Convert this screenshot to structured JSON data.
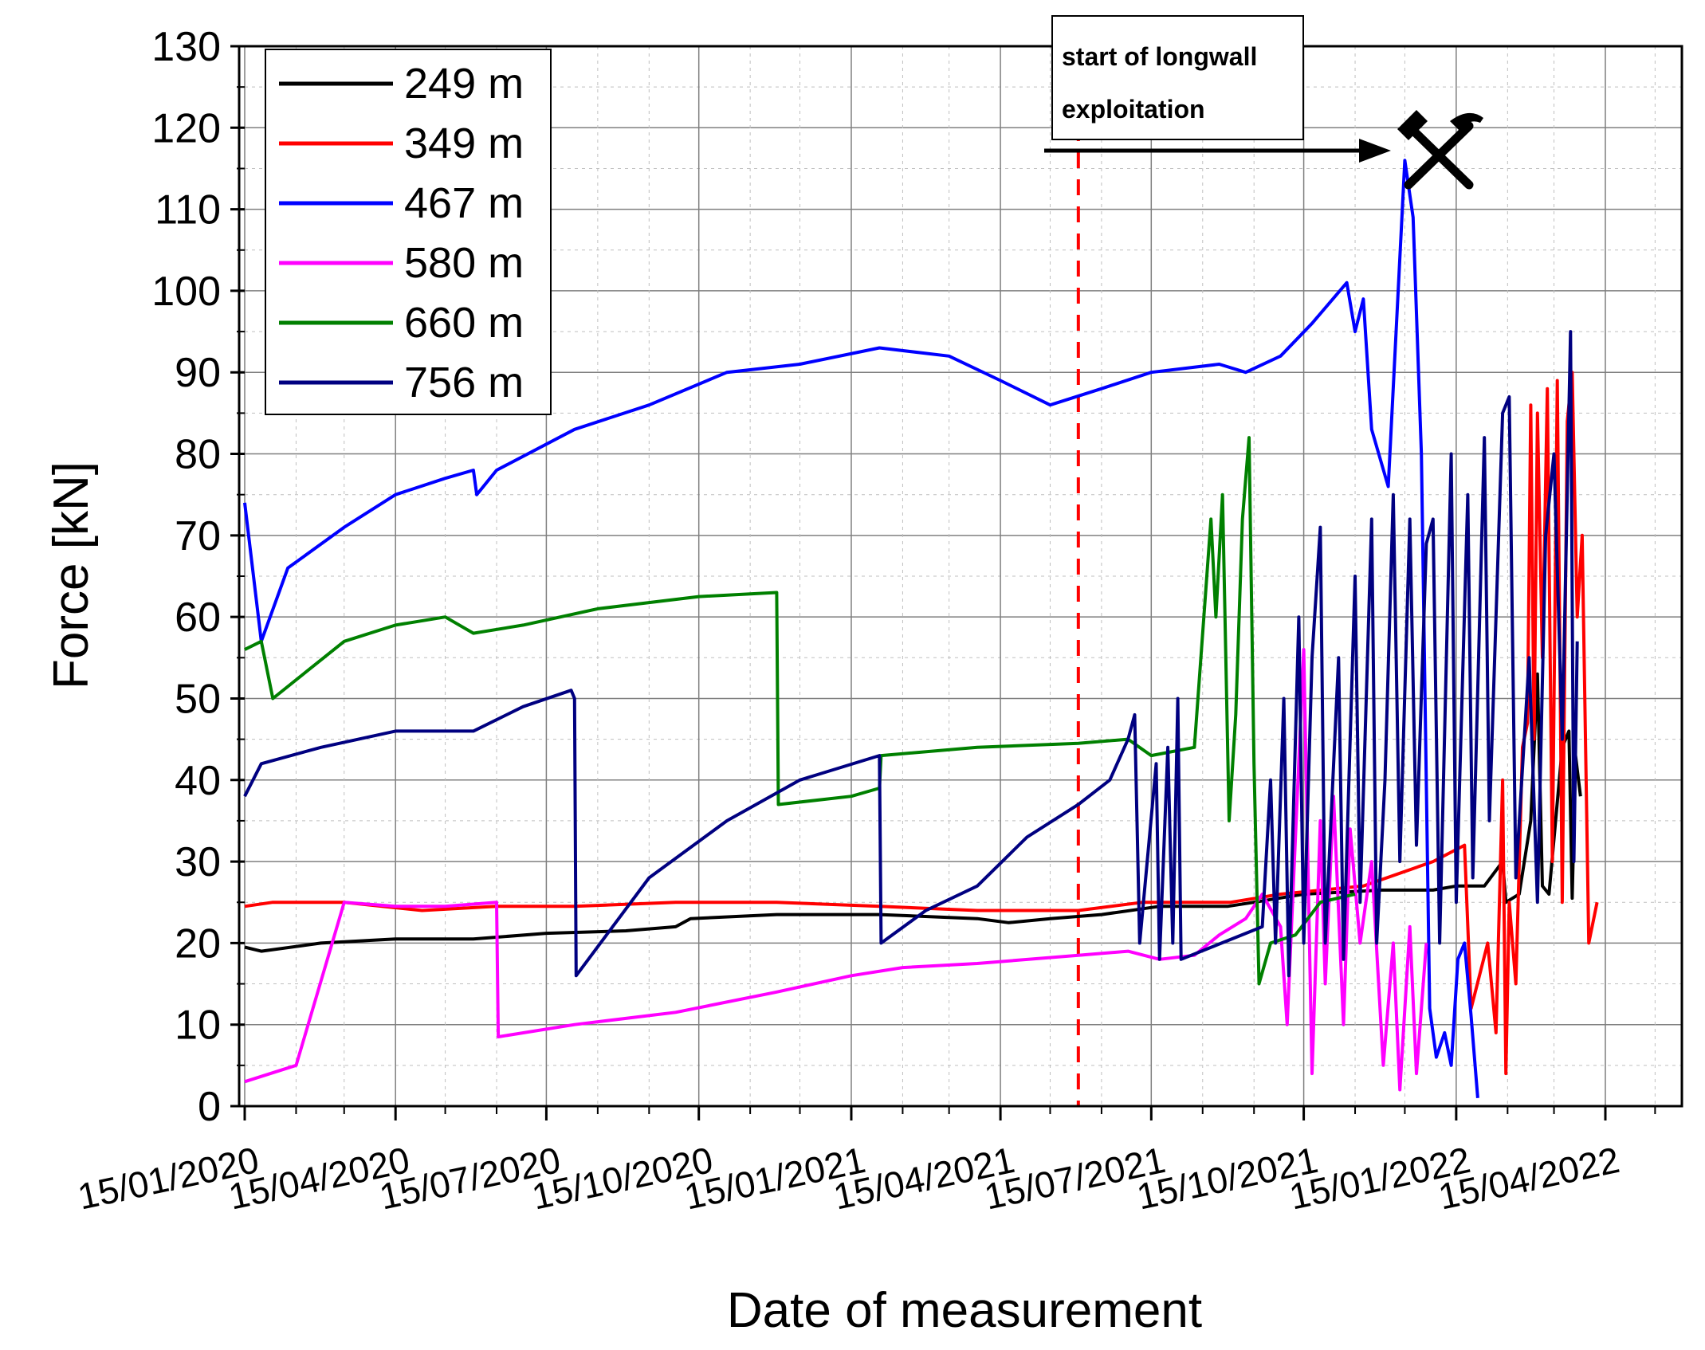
{
  "chart_data": {
    "type": "line",
    "title": "",
    "xlabel": "Date of measurement",
    "ylabel": "Force [kN]",
    "x_type": "date",
    "x_ticks": [
      "15/01/2020",
      "15/04/2020",
      "15/07/2020",
      "15/10/2020",
      "15/01/2021",
      "15/04/2021",
      "15/07/2021",
      "15/10/2021",
      "15/01/2022",
      "15/04/2022"
    ],
    "ylim": [
      0,
      130
    ],
    "y_ticks": [
      0,
      10,
      20,
      30,
      40,
      50,
      60,
      70,
      80,
      90,
      100,
      110,
      120,
      130
    ],
    "grid": true,
    "legend_position": "top-left",
    "annotation": {
      "text_line1": "start of longwall",
      "text_line2": "exploitation",
      "date": "2021-06-01",
      "line_color": "#ff0000",
      "icon": "hammer-and-pick-icon"
    },
    "series": [
      {
        "name": "249 m",
        "color": "#000000",
        "points": [
          [
            "2020-01-15",
            19.5
          ],
          [
            "2020-01-25",
            19.0
          ],
          [
            "2020-03-01",
            20.0
          ],
          [
            "2020-04-15",
            20.5
          ],
          [
            "2020-06-01",
            20.5
          ],
          [
            "2020-07-15",
            21.2
          ],
          [
            "2020-09-01",
            21.5
          ],
          [
            "2020-10-01",
            22.0
          ],
          [
            "2020-10-10",
            23.0
          ],
          [
            "2020-12-01",
            23.5
          ],
          [
            "2021-02-01",
            23.5
          ],
          [
            "2021-04-01",
            23.0
          ],
          [
            "2021-04-20",
            22.5
          ],
          [
            "2021-05-15",
            23.0
          ],
          [
            "2021-06-15",
            23.5
          ],
          [
            "2021-07-20",
            24.5
          ],
          [
            "2021-08-05",
            24.5
          ],
          [
            "2021-08-30",
            24.5
          ],
          [
            "2021-09-15",
            25.0
          ],
          [
            "2021-10-15",
            26.0
          ],
          [
            "2021-12-01",
            26.5
          ],
          [
            "2022-01-01",
            26.5
          ],
          [
            "2022-01-15",
            27.0
          ],
          [
            "2022-02-01",
            27.0
          ],
          [
            "2022-02-12",
            30.0
          ],
          [
            "2022-02-14",
            25.0
          ],
          [
            "2022-02-18",
            25.5
          ],
          [
            "2022-02-22",
            26.0
          ],
          [
            "2022-03-01",
            35.0
          ],
          [
            "2022-03-05",
            53.0
          ],
          [
            "2022-03-08",
            27.0
          ],
          [
            "2022-03-12",
            26.0
          ],
          [
            "2022-03-20",
            44.0
          ],
          [
            "2022-03-24",
            46.0
          ],
          [
            "2022-03-26",
            25.5
          ],
          [
            "2022-03-28",
            43.0
          ],
          [
            "2022-03-31",
            38.0
          ]
        ]
      },
      {
        "name": "349 m",
        "color": "#ff0000",
        "points": [
          [
            "2020-01-15",
            24.5
          ],
          [
            "2020-02-01",
            25.0
          ],
          [
            "2020-03-15",
            25.0
          ],
          [
            "2020-05-01",
            24.0
          ],
          [
            "2020-06-15",
            24.5
          ],
          [
            "2020-08-01",
            24.5
          ],
          [
            "2020-10-01",
            25.0
          ],
          [
            "2020-12-01",
            25.0
          ],
          [
            "2021-02-01",
            24.5
          ],
          [
            "2021-04-01",
            24.0
          ],
          [
            "2021-06-01",
            24.0
          ],
          [
            "2021-07-10",
            25.0
          ],
          [
            "2021-08-15",
            25.0
          ],
          [
            "2021-09-01",
            25.0
          ],
          [
            "2021-10-01",
            26.0
          ],
          [
            "2021-11-20",
            27.0
          ],
          [
            "2022-01-01",
            30.0
          ],
          [
            "2022-01-20",
            32.0
          ],
          [
            "2022-01-24",
            12.0
          ],
          [
            "2022-02-03",
            20.0
          ],
          [
            "2022-02-08",
            9.0
          ],
          [
            "2022-02-12",
            40.0
          ],
          [
            "2022-02-14",
            4.0
          ],
          [
            "2022-02-16",
            25.0
          ],
          [
            "2022-02-20",
            15.0
          ],
          [
            "2022-02-24",
            44.0
          ],
          [
            "2022-02-27",
            47.0
          ],
          [
            "2022-03-01",
            86.0
          ],
          [
            "2022-03-03",
            45.0
          ],
          [
            "2022-03-05",
            85.0
          ],
          [
            "2022-03-08",
            55.0
          ],
          [
            "2022-03-11",
            88.0
          ],
          [
            "2022-03-14",
            30.0
          ],
          [
            "2022-03-17",
            89.0
          ],
          [
            "2022-03-20",
            25.0
          ],
          [
            "2022-03-23",
            84.0
          ],
          [
            "2022-03-26",
            90.0
          ],
          [
            "2022-03-29",
            60.0
          ],
          [
            "2022-04-01",
            70.0
          ],
          [
            "2022-04-05",
            20.0
          ],
          [
            "2022-04-10",
            25.0
          ]
        ]
      },
      {
        "name": "467 m",
        "color": "#0000ff",
        "points": [
          [
            "2020-01-15",
            74.0
          ],
          [
            "2020-01-25",
            57.0
          ],
          [
            "2020-02-10",
            66.0
          ],
          [
            "2020-03-15",
            71.0
          ],
          [
            "2020-04-15",
            75.0
          ],
          [
            "2020-05-15",
            77.0
          ],
          [
            "2020-06-01",
            78.0
          ],
          [
            "2020-06-03",
            75.0
          ],
          [
            "2020-06-15",
            78.0
          ],
          [
            "2020-08-01",
            83.0
          ],
          [
            "2020-09-15",
            86.0
          ],
          [
            "2020-11-01",
            90.0
          ],
          [
            "2020-12-15",
            91.0
          ],
          [
            "2021-02-01",
            93.0
          ],
          [
            "2021-03-15",
            92.0
          ],
          [
            "2021-04-15",
            89.0
          ],
          [
            "2021-05-15",
            86.0
          ],
          [
            "2021-06-15",
            88.0
          ],
          [
            "2021-07-15",
            90.0
          ],
          [
            "2021-08-25",
            91.0
          ],
          [
            "2021-09-10",
            90.0
          ],
          [
            "2021-10-01",
            92.0
          ],
          [
            "2021-10-20",
            96.0
          ],
          [
            "2021-11-10",
            101.0
          ],
          [
            "2021-11-15",
            95.0
          ],
          [
            "2021-11-20",
            99.0
          ],
          [
            "2021-11-25",
            83.0
          ],
          [
            "2021-12-05",
            76.0
          ],
          [
            "2021-12-15",
            116.0
          ],
          [
            "2021-12-20",
            109.0
          ],
          [
            "2021-12-25",
            80.0
          ],
          [
            "2021-12-30",
            12.0
          ],
          [
            "2022-01-03",
            6.0
          ],
          [
            "2022-01-08",
            9.0
          ],
          [
            "2022-01-12",
            5.0
          ],
          [
            "2022-01-16",
            18.0
          ],
          [
            "2022-01-20",
            20.0
          ],
          [
            "2022-01-24",
            11.0
          ],
          [
            "2022-01-28",
            1.0
          ]
        ]
      },
      {
        "name": "580 m",
        "color": "#ff00ff",
        "points": [
          [
            "2020-01-15",
            3.0
          ],
          [
            "2020-02-15",
            5.0
          ],
          [
            "2020-03-15",
            25.0
          ],
          [
            "2020-04-15",
            24.5
          ],
          [
            "2020-05-15",
            24.5
          ],
          [
            "2020-06-15",
            25.0
          ],
          [
            "2020-06-16",
            8.5
          ],
          [
            "2020-08-01",
            10.0
          ],
          [
            "2020-10-01",
            11.5
          ],
          [
            "2020-12-01",
            14.0
          ],
          [
            "2021-01-15",
            16.0
          ],
          [
            "2021-02-15",
            17.0
          ],
          [
            "2021-04-01",
            17.5
          ],
          [
            "2021-06-01",
            18.5
          ],
          [
            "2021-07-01",
            19.0
          ],
          [
            "2021-07-20",
            18.0
          ],
          [
            "2021-08-10",
            18.5
          ],
          [
            "2021-08-25",
            21.0
          ],
          [
            "2021-09-10",
            23.0
          ],
          [
            "2021-09-20",
            26.0
          ],
          [
            "2021-10-01",
            22.0
          ],
          [
            "2021-10-05",
            10.0
          ],
          [
            "2021-10-10",
            33.0
          ],
          [
            "2021-10-15",
            56.0
          ],
          [
            "2021-10-20",
            4.0
          ],
          [
            "2021-10-25",
            35.0
          ],
          [
            "2021-10-28",
            15.0
          ],
          [
            "2021-11-02",
            38.0
          ],
          [
            "2021-11-08",
            10.0
          ],
          [
            "2021-11-12",
            34.0
          ],
          [
            "2021-11-18",
            20.0
          ],
          [
            "2021-11-25",
            30.0
          ],
          [
            "2021-12-02",
            5.0
          ],
          [
            "2021-12-08",
            20.0
          ],
          [
            "2021-12-12",
            2.0
          ],
          [
            "2021-12-18",
            22.0
          ],
          [
            "2021-12-22",
            4.0
          ],
          [
            "2021-12-28",
            20.0
          ]
        ]
      },
      {
        "name": "660 m",
        "color": "#008000",
        "points": [
          [
            "2020-01-15",
            56.0
          ],
          [
            "2020-01-25",
            57.0
          ],
          [
            "2020-02-01",
            50.0
          ],
          [
            "2020-03-15",
            57.0
          ],
          [
            "2020-04-15",
            59.0
          ],
          [
            "2020-05-15",
            60.0
          ],
          [
            "2020-06-01",
            58.0
          ],
          [
            "2020-07-01",
            59.0
          ],
          [
            "2020-08-15",
            61.0
          ],
          [
            "2020-10-15",
            62.5
          ],
          [
            "2020-12-01",
            63.0
          ],
          [
            "2020-12-02",
            37.0
          ],
          [
            "2021-01-15",
            38.0
          ],
          [
            "2021-02-01",
            39.0
          ],
          [
            "2021-02-02",
            43.0
          ],
          [
            "2021-04-01",
            44.0
          ],
          [
            "2021-06-01",
            44.5
          ],
          [
            "2021-07-01",
            45.0
          ],
          [
            "2021-07-15",
            43.0
          ],
          [
            "2021-08-10",
            44.0
          ],
          [
            "2021-08-20",
            72.0
          ],
          [
            "2021-08-23",
            60.0
          ],
          [
            "2021-08-27",
            75.0
          ],
          [
            "2021-08-31",
            35.0
          ],
          [
            "2021-09-04",
            48.0
          ],
          [
            "2021-09-08",
            72.0
          ],
          [
            "2021-09-12",
            82.0
          ],
          [
            "2021-09-15",
            42.0
          ],
          [
            "2021-09-18",
            15.0
          ],
          [
            "2021-09-25",
            20.0
          ],
          [
            "2021-10-10",
            21.0
          ],
          [
            "2021-10-25",
            25.0
          ],
          [
            "2021-11-15",
            26.0
          ]
        ]
      },
      {
        "name": "756 m",
        "color": "#000080",
        "points": [
          [
            "2020-01-15",
            38.0
          ],
          [
            "2020-01-25",
            42.0
          ],
          [
            "2020-03-01",
            44.0
          ],
          [
            "2020-04-15",
            46.0
          ],
          [
            "2020-06-01",
            46.0
          ],
          [
            "2020-07-01",
            49.0
          ],
          [
            "2020-07-30",
            51.0
          ],
          [
            "2020-08-01",
            50.0
          ],
          [
            "2020-08-02",
            16.0
          ],
          [
            "2020-09-15",
            28.0
          ],
          [
            "2020-11-01",
            35.0
          ],
          [
            "2020-12-15",
            40.0
          ],
          [
            "2021-02-01",
            43.0
          ],
          [
            "2021-02-02",
            20.0
          ],
          [
            "2021-03-01",
            24.0
          ],
          [
            "2021-04-01",
            27.0
          ],
          [
            "2021-05-01",
            33.0
          ],
          [
            "2021-06-01",
            37.0
          ],
          [
            "2021-06-20",
            40.0
          ],
          [
            "2021-07-01",
            45.0
          ],
          [
            "2021-07-05",
            48.0
          ],
          [
            "2021-07-08",
            20.0
          ],
          [
            "2021-07-18",
            42.0
          ],
          [
            "2021-07-20",
            18.0
          ],
          [
            "2021-07-25",
            44.0
          ],
          [
            "2021-07-28",
            20.0
          ],
          [
            "2021-07-31",
            50.0
          ],
          [
            "2021-08-02",
            18.0
          ],
          [
            "2021-09-20",
            22.0
          ],
          [
            "2021-09-25",
            40.0
          ],
          [
            "2021-09-28",
            20.0
          ],
          [
            "2021-10-03",
            50.0
          ],
          [
            "2021-10-06",
            16.0
          ],
          [
            "2021-10-12",
            60.0
          ],
          [
            "2021-10-15",
            20.0
          ],
          [
            "2021-10-20",
            55.0
          ],
          [
            "2021-10-25",
            71.0
          ],
          [
            "2021-10-28",
            20.0
          ],
          [
            "2021-11-05",
            55.0
          ],
          [
            "2021-11-08",
            18.0
          ],
          [
            "2021-11-15",
            65.0
          ],
          [
            "2021-11-18",
            25.0
          ],
          [
            "2021-11-25",
            72.0
          ],
          [
            "2021-11-28",
            20.0
          ],
          [
            "2021-12-03",
            40.0
          ],
          [
            "2021-12-08",
            75.0
          ],
          [
            "2021-12-12",
            30.0
          ],
          [
            "2021-12-18",
            72.0
          ],
          [
            "2021-12-22",
            32.0
          ],
          [
            "2021-12-28",
            69.0
          ],
          [
            "2022-01-01",
            72.0
          ],
          [
            "2022-01-05",
            20.0
          ],
          [
            "2022-01-12",
            80.0
          ],
          [
            "2022-01-15",
            25.0
          ],
          [
            "2022-01-22",
            75.0
          ],
          [
            "2022-01-25",
            28.0
          ],
          [
            "2022-02-01",
            82.0
          ],
          [
            "2022-02-04",
            35.0
          ],
          [
            "2022-02-12",
            85.0
          ],
          [
            "2022-02-16",
            87.0
          ],
          [
            "2022-02-20",
            28.0
          ],
          [
            "2022-02-28",
            55.0
          ],
          [
            "2022-03-05",
            25.0
          ],
          [
            "2022-03-10",
            70.0
          ],
          [
            "2022-03-15",
            80.0
          ],
          [
            "2022-03-20",
            45.0
          ],
          [
            "2022-03-25",
            95.0
          ],
          [
            "2022-03-27",
            30.0
          ],
          [
            "2022-03-29",
            57.0
          ]
        ]
      }
    ]
  }
}
